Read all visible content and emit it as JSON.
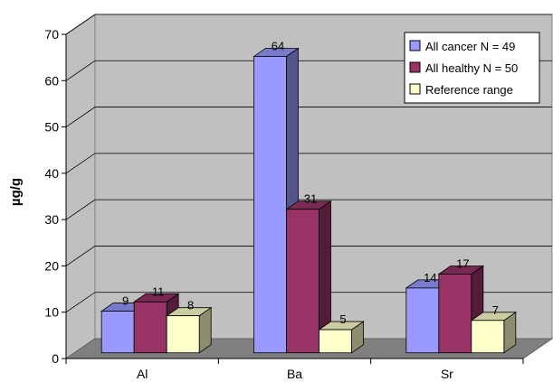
{
  "chart_data": {
    "type": "bar",
    "title": "",
    "xlabel": "",
    "ylabel": "µg/g",
    "ylim": [
      0,
      70
    ],
    "yticks": [
      0,
      10,
      20,
      30,
      40,
      50,
      60,
      70
    ],
    "grid": true,
    "three_d": true,
    "legend_position": "top-right",
    "categories": [
      "Al",
      "Ba",
      "Sr"
    ],
    "series": [
      {
        "name": "All cancer N = 49",
        "values": [
          9,
          64,
          14
        ],
        "color": "#9999ff"
      },
      {
        "name": "All healthy N = 50",
        "values": [
          11,
          31,
          17
        ],
        "color": "#993366"
      },
      {
        "name": "Reference range",
        "values": [
          8,
          5,
          7
        ],
        "color": "#ffffcc"
      }
    ],
    "colors": {
      "plot_background": "#c0c0c0",
      "floor": "#808080",
      "gridline": "#000000"
    }
  }
}
